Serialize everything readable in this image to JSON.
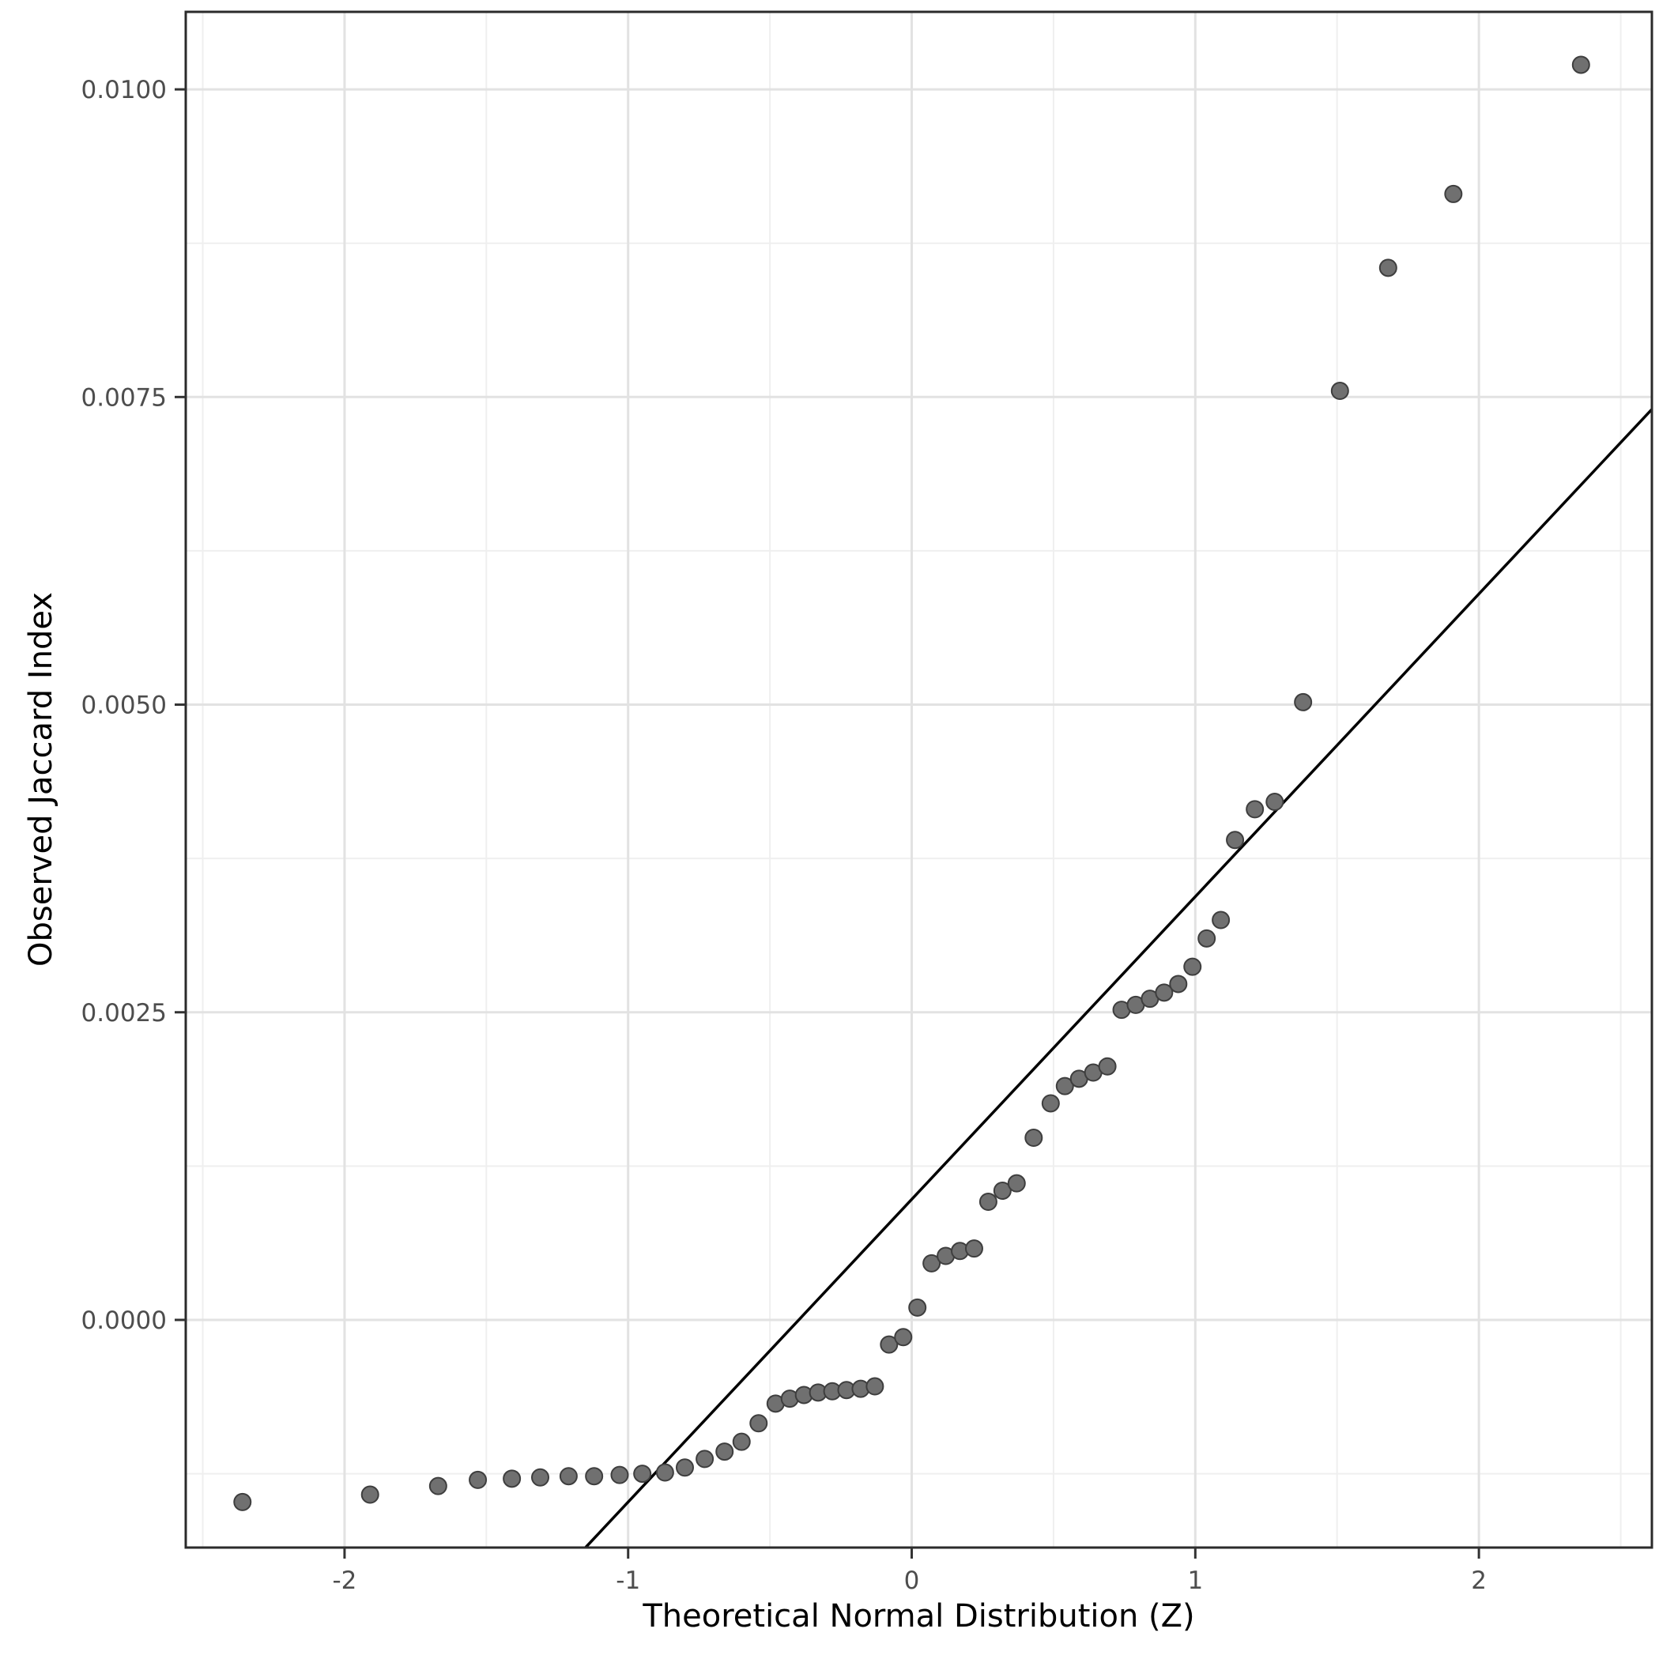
{
  "figure": {
    "kind": "qq-plot",
    "background": "#ffffff"
  },
  "chart_data": {
    "type": "scatter",
    "title": "",
    "xlabel": "Theoretical Normal Distribution (Z)",
    "ylabel": "Observed Jaccard Index",
    "xlim": [
      -2.56,
      2.61
    ],
    "ylim": [
      -0.00185,
      0.01063
    ],
    "x_ticks": [
      -2,
      -1,
      0,
      1,
      2
    ],
    "x_tick_labels": [
      "-2",
      "-1",
      "0",
      "1",
      "2"
    ],
    "y_ticks": [
      0.0,
      0.0025,
      0.005,
      0.0075,
      0.01
    ],
    "y_tick_labels": [
      "0.0000",
      "0.0025",
      "0.0050",
      "0.0075",
      "0.0100"
    ],
    "grid": true,
    "legend": "none",
    "point_color": "#707070",
    "point_edge_color": "#3e3e3e",
    "reference_line": {
      "slope": 0.00246,
      "intercept": 0.00098,
      "color": "#000000"
    },
    "points": [
      [
        -2.36,
        -0.00148
      ],
      [
        -1.91,
        -0.00142
      ],
      [
        -1.67,
        -0.00135
      ],
      [
        -1.53,
        -0.0013
      ],
      [
        -1.41,
        -0.00129
      ],
      [
        -1.31,
        -0.00128
      ],
      [
        -1.21,
        -0.00127
      ],
      [
        -1.12,
        -0.00127
      ],
      [
        -1.03,
        -0.00126
      ],
      [
        -0.95,
        -0.00125
      ],
      [
        -0.87,
        -0.00124
      ],
      [
        -0.8,
        -0.0012
      ],
      [
        -0.73,
        -0.00113
      ],
      [
        -0.66,
        -0.00107
      ],
      [
        -0.6,
        -0.00099
      ],
      [
        -0.54,
        -0.00084
      ],
      [
        -0.48,
        -0.00068
      ],
      [
        -0.43,
        -0.00064
      ],
      [
        -0.38,
        -0.00061
      ],
      [
        -0.33,
        -0.00059
      ],
      [
        -0.28,
        -0.00058
      ],
      [
        -0.23,
        -0.00057
      ],
      [
        -0.18,
        -0.00056
      ],
      [
        -0.13,
        -0.00054
      ],
      [
        -0.08,
        -0.0002
      ],
      [
        -0.03,
        -0.00014
      ],
      [
        0.02,
        0.0001
      ],
      [
        0.07,
        0.00046
      ],
      [
        0.12,
        0.00052
      ],
      [
        0.17,
        0.00056
      ],
      [
        0.22,
        0.00058
      ],
      [
        0.27,
        0.00096
      ],
      [
        0.32,
        0.00105
      ],
      [
        0.37,
        0.00111
      ],
      [
        0.43,
        0.00148
      ],
      [
        0.49,
        0.00176
      ],
      [
        0.54,
        0.0019
      ],
      [
        0.59,
        0.00196
      ],
      [
        0.64,
        0.00201
      ],
      [
        0.69,
        0.00206
      ],
      [
        0.74,
        0.00252
      ],
      [
        0.79,
        0.00256
      ],
      [
        0.84,
        0.00261
      ],
      [
        0.89,
        0.00266
      ],
      [
        0.94,
        0.00273
      ],
      [
        0.99,
        0.00287
      ],
      [
        1.04,
        0.0031
      ],
      [
        1.09,
        0.00325
      ],
      [
        1.14,
        0.0039
      ],
      [
        1.21,
        0.00415
      ],
      [
        1.28,
        0.00421
      ],
      [
        1.38,
        0.00502
      ],
      [
        1.51,
        0.00755
      ],
      [
        1.68,
        0.00855
      ],
      [
        1.91,
        0.00915
      ],
      [
        2.36,
        0.0102
      ]
    ]
  },
  "theme": {
    "panel_background": "#ffffff",
    "grid_major_color": "#e2e2e2",
    "grid_minor_color": "#efefef",
    "panel_border_color": "#2b2b2b",
    "tick_color": "#333333",
    "tick_label_color": "#4d4d4d"
  }
}
